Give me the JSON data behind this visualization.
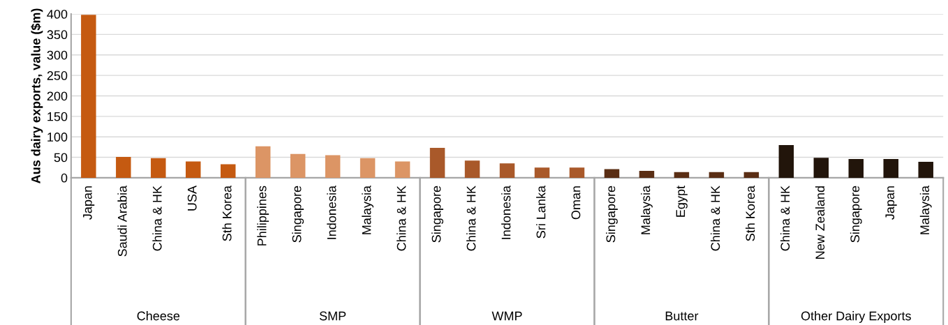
{
  "chart_data": {
    "type": "bar",
    "ylabel": "Aus dairy exports, value ($m)",
    "categories": [
      "Japan",
      "Saudi Arabia",
      "China & HK",
      "USA",
      "Sth Korea",
      "Philippines",
      "Singapore",
      "Indonesia",
      "Malaysia",
      "China & HK",
      "Singapore",
      "China & HK",
      "Indonesia",
      "Sri Lanka",
      "Oman",
      "Singapore",
      "Malaysia",
      "Egypt",
      "China & HK",
      "Sth Korea",
      "China & HK",
      "New Zealand",
      "Singapore",
      "Japan",
      "Malaysia"
    ],
    "series": [
      {
        "color": "#c55a11",
        "values": [
          398,
          51,
          48,
          40,
          33,
          null,
          null,
          null,
          null,
          null,
          null,
          null,
          null,
          null,
          null,
          null,
          null,
          null,
          null,
          null,
          null,
          null,
          null,
          null,
          null
        ]
      },
      {
        "color": "#dc9565",
        "values": [
          null,
          null,
          null,
          null,
          null,
          77,
          58,
          55,
          48,
          40,
          null,
          null,
          null,
          null,
          null,
          null,
          null,
          null,
          null,
          null,
          null,
          null,
          null,
          null,
          null
        ]
      },
      {
        "color": "#a9592a",
        "values": [
          null,
          null,
          null,
          null,
          null,
          null,
          null,
          null,
          null,
          null,
          73,
          42,
          35,
          25,
          25,
          null,
          null,
          null,
          null,
          null,
          null,
          null,
          null,
          null,
          null
        ]
      },
      {
        "color": "#5a2e14",
        "values": [
          null,
          null,
          null,
          null,
          null,
          null,
          null,
          null,
          null,
          null,
          null,
          null,
          null,
          null,
          null,
          21,
          17,
          14,
          14,
          14,
          null,
          null,
          null,
          null,
          null
        ]
      },
      {
        "color": "#22150b",
        "values": [
          null,
          null,
          null,
          null,
          null,
          null,
          null,
          null,
          null,
          null,
          null,
          null,
          null,
          null,
          null,
          null,
          null,
          null,
          null,
          null,
          80,
          49,
          46,
          46,
          39
        ]
      }
    ],
    "annotations": [
      "Cheese",
      "SMP",
      "WMP",
      "Butter",
      "Other Dairy Exports"
    ],
    "ylim": [
      0,
      400
    ],
    "yticks": [
      0,
      50,
      100,
      150,
      200,
      250,
      300,
      350,
      400
    ],
    "grid": "y"
  }
}
